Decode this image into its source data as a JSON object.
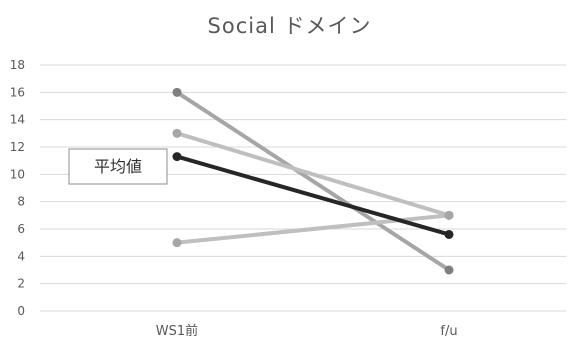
{
  "chart_data": {
    "type": "line",
    "title": "Social ドメイン",
    "categories": [
      "WS1前",
      "f/u"
    ],
    "ylim": [
      0,
      18
    ],
    "yticks": [
      0,
      2,
      4,
      6,
      8,
      10,
      12,
      14,
      16,
      18
    ],
    "grid": true,
    "series": [
      {
        "values": [
          16,
          3
        ],
        "color": "#a6a6a6",
        "marker_color": "#7f7f7f"
      },
      {
        "values": [
          13,
          7
        ],
        "color": "#bfbfbf",
        "marker_color": "#a6a6a6"
      },
      {
        "values": [
          5,
          7
        ],
        "color": "#bfbfbf",
        "marker_color": "#a6a6a6"
      },
      {
        "values": [
          11.3,
          5.6
        ],
        "color": "#262626",
        "marker_color": "#262626"
      }
    ],
    "annotation": {
      "text": "平均値"
    }
  }
}
